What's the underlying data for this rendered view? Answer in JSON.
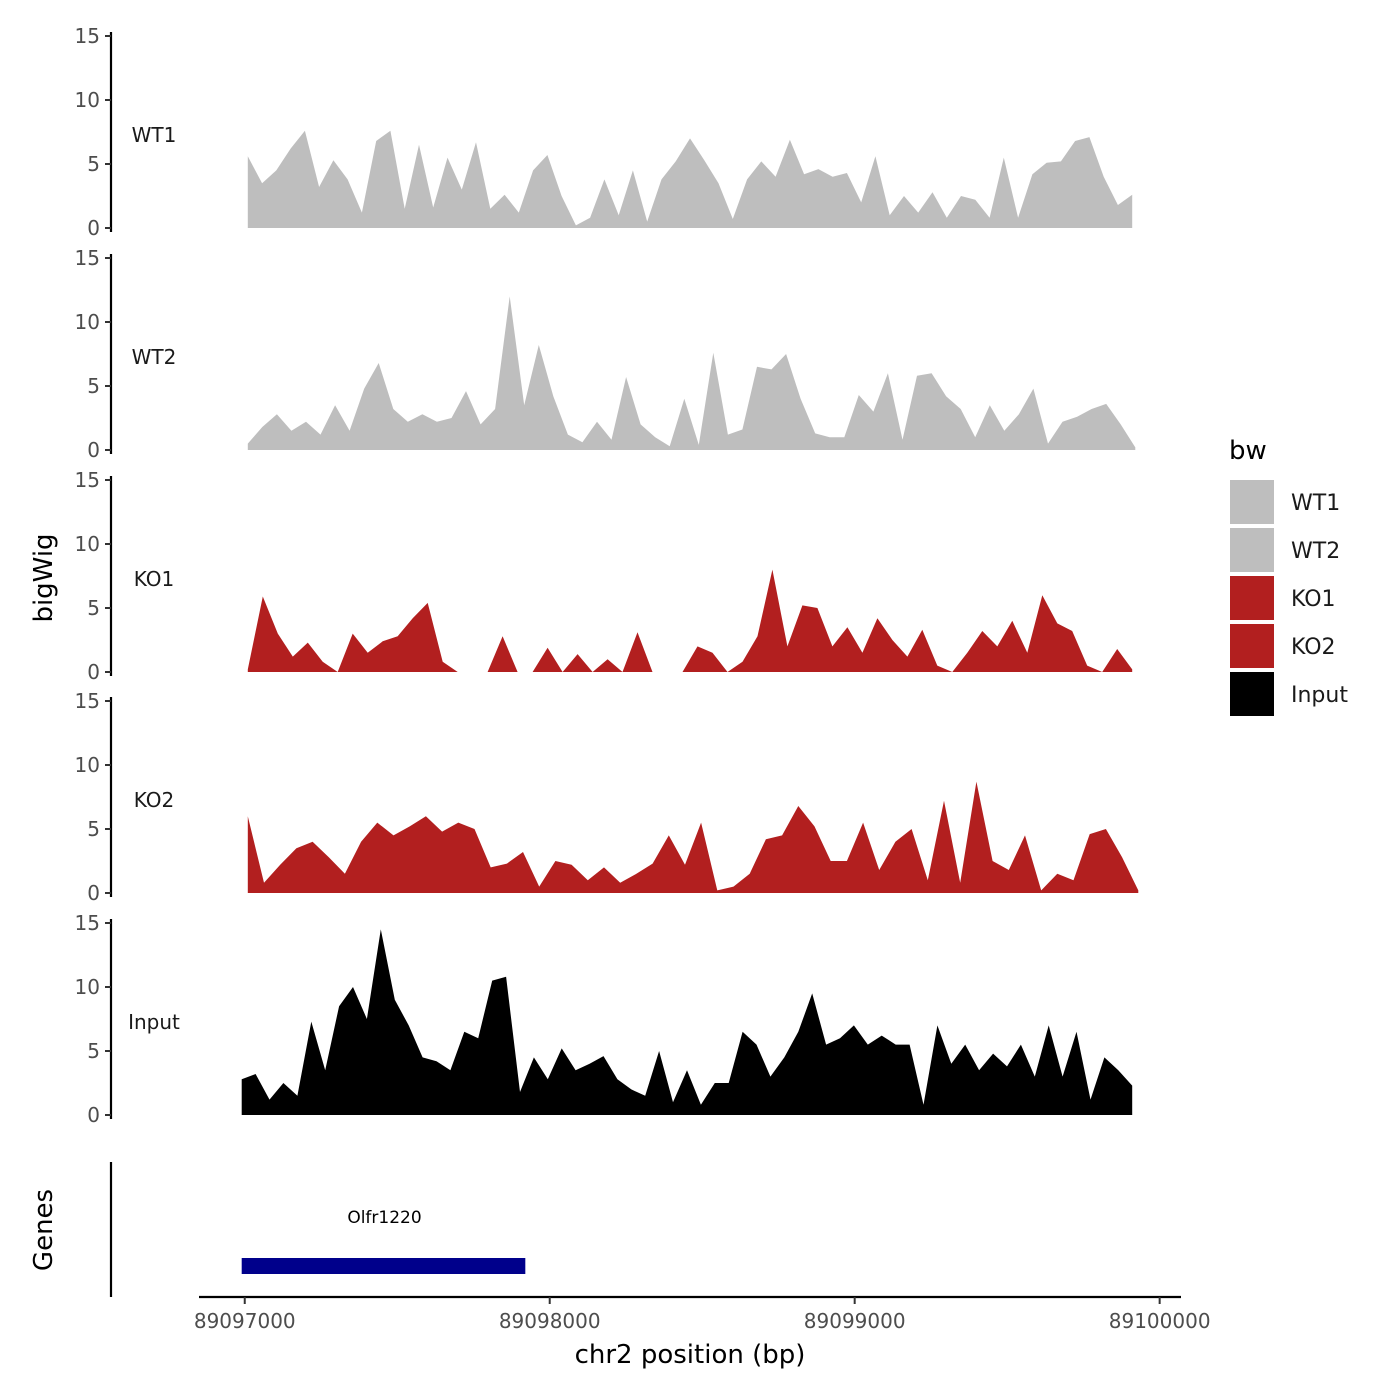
{
  "chart_data": {
    "type": "area",
    "ylabel": "bigWig",
    "genes_label": "Genes",
    "xlabel": "chr2 position (bp)",
    "xlim": [
      89096850,
      89100070
    ],
    "ylim": [
      0,
      15
    ],
    "y_ticks": [
      "0",
      "5",
      "10",
      "15"
    ],
    "x_ticks": [
      {
        "value": 89097000,
        "label": "89097000"
      },
      {
        "value": 89098000,
        "label": "89098000"
      },
      {
        "value": 89099000,
        "label": "89099000"
      },
      {
        "value": 89100000,
        "label": "89100000"
      }
    ],
    "legend": {
      "title": "bw",
      "items": [
        {
          "label": "WT1",
          "color": "#bebebe"
        },
        {
          "label": "WT2",
          "color": "#bebebe"
        },
        {
          "label": "KO1",
          "color": "#b21f1f"
        },
        {
          "label": "KO2",
          "color": "#b21f1f"
        },
        {
          "label": "Input",
          "color": "#000000"
        }
      ]
    },
    "series": [
      {
        "name": "WT1",
        "color": "#bebebe",
        "start": 89097010,
        "end": 89099910,
        "values": [
          5.6,
          3.5,
          4.5,
          6.2,
          7.6,
          3.2,
          5.3,
          3.8,
          1.2,
          6.8,
          7.6,
          1.5,
          6.5,
          1.6,
          5.5,
          3.0,
          6.7,
          1.5,
          2.6,
          1.2,
          4.5,
          5.7,
          2.5,
          0.2,
          0.8,
          3.8,
          1.0,
          4.5,
          0.5,
          3.8,
          5.2,
          7.0,
          5.3,
          3.5,
          0.7,
          3.8,
          5.2,
          4.0,
          6.9,
          4.2,
          4.6,
          4.0,
          4.3,
          2.0,
          5.6,
          1.0,
          2.5,
          1.2,
          2.8,
          0.8,
          2.5,
          2.2,
          0.8,
          5.5,
          0.8,
          4.2,
          5.1,
          5.2,
          6.8,
          7.1,
          4.0,
          1.8,
          2.6
        ]
      },
      {
        "name": "WT2",
        "color": "#bebebe",
        "start": 89097010,
        "end": 89099920,
        "values": [
          0.5,
          1.8,
          2.8,
          1.5,
          2.2,
          1.2,
          3.5,
          1.5,
          4.8,
          6.8,
          3.2,
          2.2,
          2.8,
          2.2,
          2.5,
          4.6,
          2.0,
          3.2,
          12.0,
          3.5,
          8.2,
          4.2,
          1.2,
          0.6,
          2.2,
          0.8,
          5.7,
          2.0,
          1.0,
          0.3,
          4.0,
          0.4,
          7.6,
          1.2,
          1.6,
          6.5,
          6.3,
          7.5,
          4.0,
          1.3,
          1.0,
          1.0,
          4.3,
          3.0,
          6.0,
          0.8,
          5.8,
          6.0,
          4.2,
          3.2,
          1.0,
          3.5,
          1.5,
          2.8,
          4.8,
          0.5,
          2.2,
          2.6,
          3.2,
          3.6,
          2.0,
          0.2
        ]
      },
      {
        "name": "KO1",
        "color": "#b21f1f",
        "start": 89097010,
        "end": 89099910,
        "values": [
          0.2,
          5.9,
          3.0,
          1.2,
          2.3,
          0.8,
          0,
          3.0,
          1.5,
          2.4,
          2.8,
          4.2,
          5.4,
          0.8,
          0,
          0,
          0,
          2.8,
          0,
          0,
          1.9,
          0,
          1.4,
          0,
          1.0,
          0,
          3.1,
          0,
          0,
          0,
          2.0,
          1.5,
          0,
          0.8,
          2.8,
          8.0,
          2.0,
          5.2,
          5.0,
          2.0,
          3.5,
          1.5,
          4.2,
          2.5,
          1.2,
          3.3,
          0.5,
          0,
          1.5,
          3.2,
          2.0,
          4.0,
          1.5,
          6.0,
          3.8,
          3.2,
          0.5,
          0,
          1.8,
          0.2
        ]
      },
      {
        "name": "KO2",
        "color": "#b21f1f",
        "start": 89097010,
        "end": 89099930,
        "values": [
          6.0,
          0.8,
          2.2,
          3.5,
          4.0,
          2.8,
          1.5,
          4.0,
          5.5,
          4.5,
          5.2,
          6.0,
          4.8,
          5.5,
          5.0,
          2.0,
          2.3,
          3.2,
          0.5,
          2.5,
          2.2,
          1.0,
          2.0,
          0.8,
          1.5,
          2.3,
          4.5,
          2.2,
          5.5,
          0.2,
          0.5,
          1.5,
          4.2,
          4.5,
          6.8,
          5.2,
          2.5,
          2.5,
          5.5,
          1.8,
          4.0,
          5.0,
          1.0,
          7.2,
          0.8,
          8.7,
          2.5,
          1.8,
          4.5,
          0.2,
          1.5,
          1.0,
          4.6,
          5.0,
          2.8,
          0.2
        ]
      },
      {
        "name": "Input",
        "color": "#000000",
        "start": 89096990,
        "end": 89099910,
        "values": [
          2.8,
          3.2,
          1.2,
          2.5,
          1.5,
          7.3,
          3.5,
          8.5,
          10.0,
          7.5,
          14.5,
          9.0,
          7.0,
          4.5,
          4.2,
          3.5,
          6.5,
          6.0,
          10.5,
          10.8,
          1.8,
          4.5,
          2.8,
          5.2,
          3.5,
          4.0,
          4.6,
          2.8,
          2.0,
          1.5,
          5.0,
          1.0,
          3.5,
          0.8,
          2.5,
          2.5,
          6.5,
          5.5,
          3.0,
          4.5,
          6.5,
          9.5,
          5.5,
          6.0,
          7.0,
          5.5,
          6.2,
          5.5,
          5.5,
          0.8,
          7.0,
          4.0,
          5.5,
          3.5,
          4.8,
          3.8,
          5.5,
          3.0,
          7.0,
          3.0,
          6.5,
          1.2,
          4.5,
          3.5,
          2.3
        ]
      }
    ],
    "genes": [
      {
        "name": "Olfr1220",
        "start": 89096990,
        "end": 89097920,
        "color": "#00008b"
      }
    ]
  }
}
